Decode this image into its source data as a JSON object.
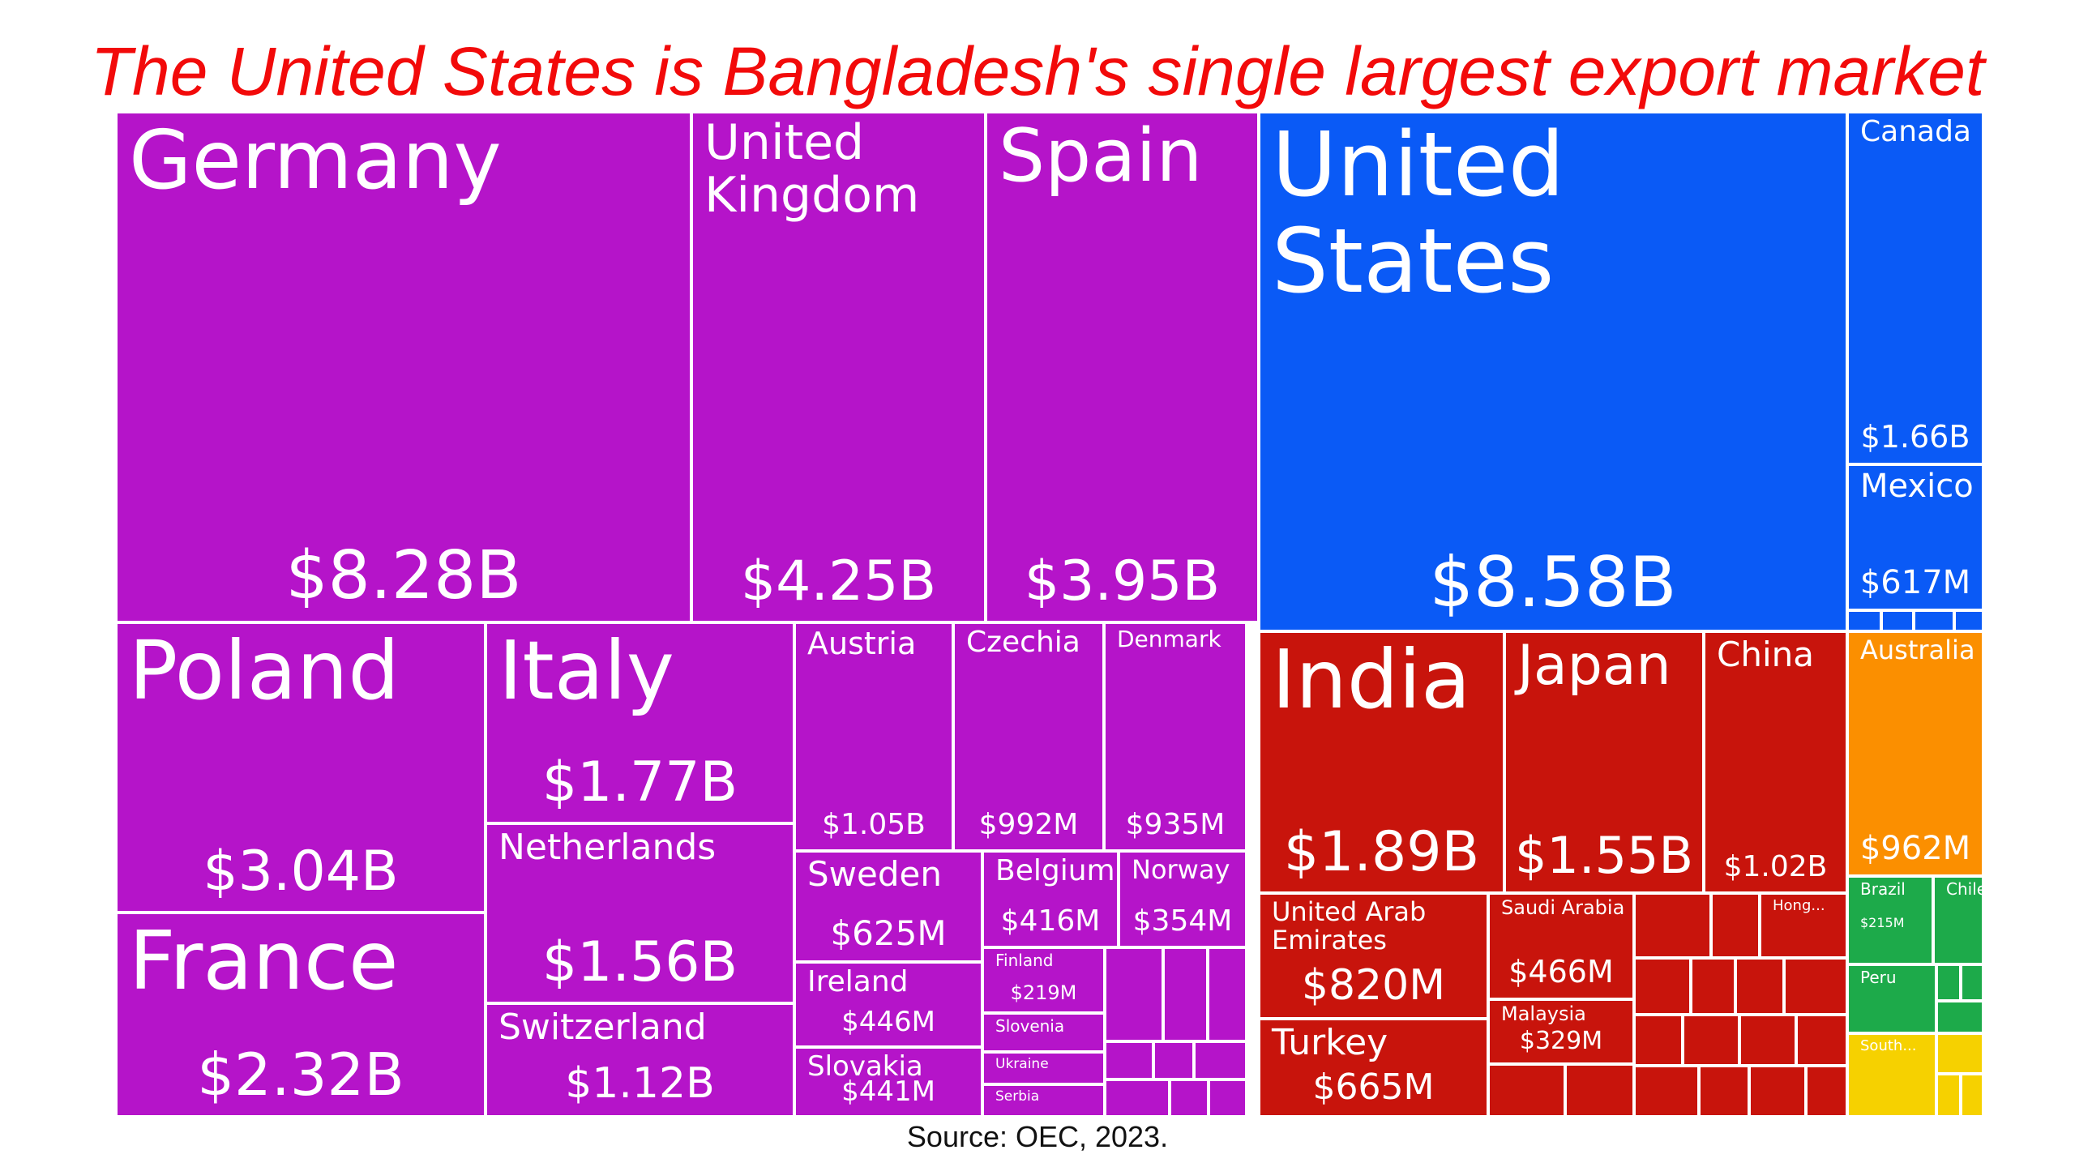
{
  "title": "The United States is Bangladesh's single largest export market",
  "source": "Source: OEC, 2023.",
  "colors": {
    "title": "#f20a0a",
    "europe": "#b514c9",
    "north_america": "#0a5af6",
    "asia": "#c8140c",
    "oceania": "#fb8f00",
    "south_america": "#1daa4a",
    "africa": "#f6d100"
  },
  "chart_data": {
    "type": "treemap",
    "unit": "USD",
    "series": [
      {
        "name": "Germany",
        "value": "$8.28B",
        "value_num": 8280000000.0,
        "region": "europe"
      },
      {
        "name": "United Kingdom",
        "value": "$4.25B",
        "value_num": 4250000000.0,
        "region": "europe"
      },
      {
        "name": "Spain",
        "value": "$3.95B",
        "value_num": 3950000000.0,
        "region": "europe"
      },
      {
        "name": "Poland",
        "value": "$3.04B",
        "value_num": 3040000000.0,
        "region": "europe"
      },
      {
        "name": "Italy",
        "value": "$1.77B",
        "value_num": 1770000000.0,
        "region": "europe"
      },
      {
        "name": "Austria",
        "value": "$1.05B",
        "value_num": 1050000000.0,
        "region": "europe"
      },
      {
        "name": "Czechia",
        "value": "$992M",
        "value_num": 992000000.0,
        "region": "europe"
      },
      {
        "name": "Denmark",
        "value": "$935M",
        "value_num": 935000000.0,
        "region": "europe"
      },
      {
        "name": "France",
        "value": "$2.32B",
        "value_num": 2320000000.0,
        "region": "europe"
      },
      {
        "name": "Netherlands",
        "value": "$1.56B",
        "value_num": 1560000000.0,
        "region": "europe"
      },
      {
        "name": "Switzerland",
        "value": "$1.12B",
        "value_num": 1120000000.0,
        "region": "europe"
      },
      {
        "name": "Sweden",
        "value": "$625M",
        "value_num": 625000000.0,
        "region": "europe"
      },
      {
        "name": "Belgium",
        "value": "$416M",
        "value_num": 416000000.0,
        "region": "europe"
      },
      {
        "name": "Norway",
        "value": "$354M",
        "value_num": 354000000.0,
        "region": "europe"
      },
      {
        "name": "Ireland",
        "value": "$446M",
        "value_num": 446000000.0,
        "region": "europe"
      },
      {
        "name": "Slovakia",
        "value": "$441M",
        "value_num": 441000000.0,
        "region": "europe"
      },
      {
        "name": "Finland",
        "value": "$219M",
        "value_num": 219000000.0,
        "region": "europe"
      },
      {
        "name": "Slovenia",
        "value": "",
        "value_num": null,
        "region": "europe"
      },
      {
        "name": "Ukraine",
        "value": "",
        "value_num": null,
        "region": "europe"
      },
      {
        "name": "Serbia",
        "value": "",
        "value_num": null,
        "region": "europe"
      },
      {
        "name": "United States",
        "value": "$8.58B",
        "value_num": 8580000000.0,
        "region": "north_america"
      },
      {
        "name": "Canada",
        "value": "$1.66B",
        "value_num": 1660000000.0,
        "region": "north_america"
      },
      {
        "name": "Mexico",
        "value": "$617M",
        "value_num": 617000000.0,
        "region": "north_america"
      },
      {
        "name": "India",
        "value": "$1.89B",
        "value_num": 1890000000.0,
        "region": "asia"
      },
      {
        "name": "Japan",
        "value": "$1.55B",
        "value_num": 1550000000.0,
        "region": "asia"
      },
      {
        "name": "China",
        "value": "$1.02B",
        "value_num": 1020000000.0,
        "region": "asia"
      },
      {
        "name": "United Arab Emirates",
        "value": "$820M",
        "value_num": 820000000.0,
        "region": "asia"
      },
      {
        "name": "Saudi Arabia",
        "value": "$466M",
        "value_num": 466000000.0,
        "region": "asia"
      },
      {
        "name": "Turkey",
        "value": "$665M",
        "value_num": 665000000.0,
        "region": "asia"
      },
      {
        "name": "Malaysia",
        "value": "$329M",
        "value_num": 329000000.0,
        "region": "asia"
      },
      {
        "name": "Hong...",
        "value": "",
        "value_num": null,
        "region": "asia"
      },
      {
        "name": "Australia",
        "value": "$962M",
        "value_num": 962000000.0,
        "region": "oceania"
      },
      {
        "name": "Brazil",
        "value": "$215M",
        "value_num": 215000000.0,
        "region": "south_america"
      },
      {
        "name": "Chile",
        "value": "",
        "value_num": null,
        "region": "south_america"
      },
      {
        "name": "Peru",
        "value": "",
        "value_num": null,
        "region": "south_america"
      },
      {
        "name": "South...",
        "value": "",
        "value_num": null,
        "region": "africa"
      }
    ],
    "unlabeled_tiles_note": "",
    "legend": "none"
  }
}
